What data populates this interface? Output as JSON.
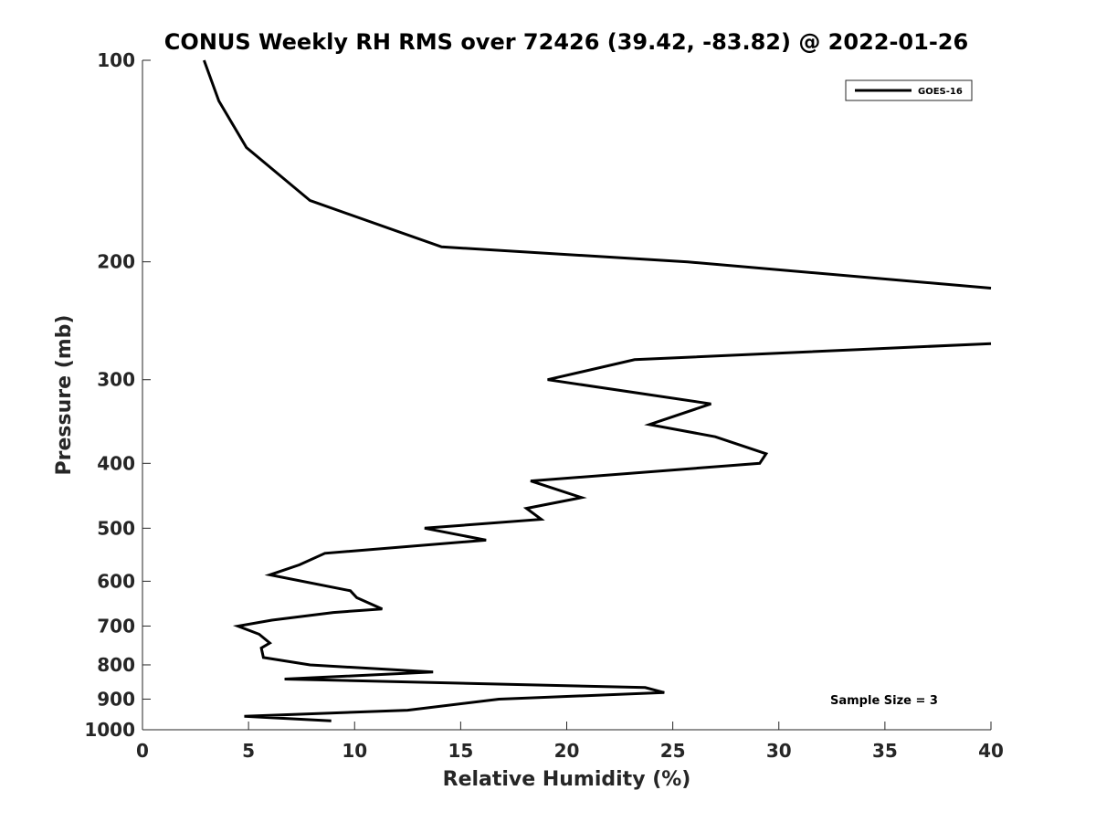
{
  "chart_data": {
    "type": "line",
    "title": "CONUS Weekly RH RMS over 72426 (39.42, -83.82) @ 2022-01-26",
    "xlabel": "Relative Humidity (%)",
    "ylabel": "Pressure (mb)",
    "xlim": [
      0,
      40
    ],
    "ylim": [
      1000,
      100
    ],
    "yscale": "log",
    "y_reversed": true,
    "grid": false,
    "legend_position": "top-right",
    "x_ticks": [
      0,
      5,
      10,
      15,
      20,
      25,
      30,
      35,
      40
    ],
    "y_ticks": [
      100,
      200,
      300,
      400,
      500,
      600,
      700,
      800,
      900,
      1000
    ],
    "series": [
      {
        "name": "GOES-16",
        "color": "#000000",
        "segments": [
          [
            {
              "x": 2.9,
              "y": 100
            },
            {
              "x": 3.6,
              "y": 115
            },
            {
              "x": 4.9,
              "y": 135
            },
            {
              "x": 7.9,
              "y": 162
            },
            {
              "x": 14.1,
              "y": 190
            },
            {
              "x": 25.7,
              "y": 200
            },
            {
              "x": 40.0,
              "y": 219
            }
          ],
          [
            {
              "x": 40.0,
              "y": 265
            },
            {
              "x": 23.2,
              "y": 280
            },
            {
              "x": 19.1,
              "y": 300
            },
            {
              "x": 26.8,
              "y": 326
            },
            {
              "x": 23.9,
              "y": 350
            },
            {
              "x": 27.0,
              "y": 365
            },
            {
              "x": 29.4,
              "y": 387
            },
            {
              "x": 29.1,
              "y": 400
            },
            {
              "x": 18.3,
              "y": 425
            },
            {
              "x": 20.7,
              "y": 450
            },
            {
              "x": 18.1,
              "y": 467
            },
            {
              "x": 18.8,
              "y": 485
            },
            {
              "x": 13.3,
              "y": 500
            },
            {
              "x": 16.2,
              "y": 521
            },
            {
              "x": 8.6,
              "y": 545
            },
            {
              "x": 7.4,
              "y": 567
            },
            {
              "x": 6.0,
              "y": 587
            },
            {
              "x": 9.8,
              "y": 620
            },
            {
              "x": 10.1,
              "y": 635
            },
            {
              "x": 11.3,
              "y": 660
            },
            {
              "x": 9.0,
              "y": 668
            },
            {
              "x": 6.1,
              "y": 686
            },
            {
              "x": 4.5,
              "y": 700
            },
            {
              "x": 5.5,
              "y": 720
            },
            {
              "x": 6.0,
              "y": 742
            },
            {
              "x": 5.6,
              "y": 755
            },
            {
              "x": 5.7,
              "y": 780
            },
            {
              "x": 7.9,
              "y": 800
            },
            {
              "x": 13.7,
              "y": 820
            },
            {
              "x": 6.7,
              "y": 840
            },
            {
              "x": 23.7,
              "y": 865
            },
            {
              "x": 24.6,
              "y": 880
            },
            {
              "x": 16.8,
              "y": 900
            },
            {
              "x": 12.5,
              "y": 935
            },
            {
              "x": 4.8,
              "y": 955
            },
            {
              "x": 8.9,
              "y": 970
            }
          ]
        ]
      }
    ],
    "annotations": [
      {
        "text": "Sample Size = 3",
        "x": 35,
        "y": 900
      }
    ]
  }
}
